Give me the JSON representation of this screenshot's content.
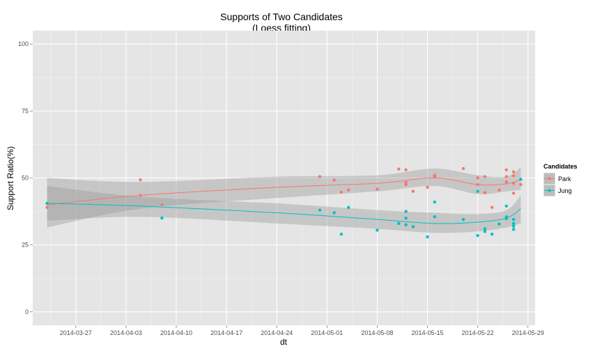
{
  "chart_data": {
    "type": "scatter",
    "title": "Supports of Two Candidates",
    "subtitle": "(Loess fitting)",
    "xlabel": "dt",
    "ylabel": "Support Ratio(%)",
    "ylim": [
      -5,
      105
    ],
    "xlim": [
      "2014-03-21",
      "2014-05-30"
    ],
    "x_ticks": [
      "2014-03-27",
      "2014-04-03",
      "2014-04-10",
      "2014-04-17",
      "2014-04-24",
      "2014-05-01",
      "2014-05-08",
      "2014-05-15",
      "2014-05-22",
      "2014-05-29"
    ],
    "y_ticks": [
      0,
      25,
      50,
      75,
      100
    ],
    "grid": true,
    "legend": {
      "title": "Candidates",
      "position": "right"
    },
    "series": [
      {
        "name": "Park",
        "color": "#F8766D",
        "points": [
          [
            "2014-03-23",
            39.0
          ],
          [
            "2014-04-05",
            49.3
          ],
          [
            "2014-04-05",
            43.5
          ],
          [
            "2014-04-08",
            40.0
          ],
          [
            "2014-04-30",
            50.5
          ],
          [
            "2014-05-02",
            49.2
          ],
          [
            "2014-05-03",
            44.7
          ],
          [
            "2014-05-04",
            45.5
          ],
          [
            "2014-05-08",
            45.8
          ],
          [
            "2014-05-11",
            53.3
          ],
          [
            "2014-05-12",
            53.0
          ],
          [
            "2014-05-12",
            48.3
          ],
          [
            "2014-05-12",
            47.5
          ],
          [
            "2014-05-13",
            45.0
          ],
          [
            "2014-05-15",
            46.5
          ],
          [
            "2014-05-16",
            51.0
          ],
          [
            "2014-05-16",
            50.5
          ],
          [
            "2014-05-20",
            53.5
          ],
          [
            "2014-05-22",
            50.0
          ],
          [
            "2014-05-22",
            47.5
          ],
          [
            "2014-05-23",
            50.5
          ],
          [
            "2014-05-23",
            44.5
          ],
          [
            "2014-05-24",
            39.0
          ],
          [
            "2014-05-25",
            45.5
          ],
          [
            "2014-05-26",
            53.0
          ],
          [
            "2014-05-26",
            50.5
          ],
          [
            "2014-05-26",
            48.5
          ],
          [
            "2014-05-27",
            52.3
          ],
          [
            "2014-05-27",
            50.8
          ],
          [
            "2014-05-27",
            48.0
          ],
          [
            "2014-05-27",
            44.3
          ],
          [
            "2014-05-28",
            49.5
          ],
          [
            "2014-05-28",
            47.5
          ]
        ],
        "fit": [
          [
            "2014-03-23",
            40.0
          ],
          [
            "2014-04-05",
            43.5
          ],
          [
            "2014-04-24",
            46.5
          ],
          [
            "2014-05-08",
            48.0
          ],
          [
            "2014-05-16",
            50.0
          ],
          [
            "2014-05-22",
            47.5
          ],
          [
            "2014-05-26",
            47.8
          ],
          [
            "2014-05-28",
            49.5
          ]
        ],
        "band_upper": [
          [
            "2014-03-23",
            50.0
          ],
          [
            "2014-04-05",
            48.5
          ],
          [
            "2014-04-24",
            50.5
          ],
          [
            "2014-05-08",
            51.0
          ],
          [
            "2014-05-16",
            53.5
          ],
          [
            "2014-05-22",
            51.0
          ],
          [
            "2014-05-26",
            50.5
          ],
          [
            "2014-05-28",
            54.0
          ]
        ],
        "band_lower": [
          [
            "2014-03-23",
            31.5
          ],
          [
            "2014-04-05",
            38.5
          ],
          [
            "2014-04-24",
            42.5
          ],
          [
            "2014-05-08",
            45.0
          ],
          [
            "2014-05-16",
            47.0
          ],
          [
            "2014-05-22",
            44.0
          ],
          [
            "2014-05-26",
            45.0
          ],
          [
            "2014-05-28",
            45.5
          ]
        ]
      },
      {
        "name": "Jung",
        "color": "#00BFC4",
        "points": [
          [
            "2014-03-23",
            40.5
          ],
          [
            "2014-04-08",
            35.0
          ],
          [
            "2014-04-30",
            38.0
          ],
          [
            "2014-05-02",
            37.0
          ],
          [
            "2014-05-03",
            29.0
          ],
          [
            "2014-05-04",
            39.0
          ],
          [
            "2014-05-08",
            30.5
          ],
          [
            "2014-05-11",
            33.0
          ],
          [
            "2014-05-12",
            37.5
          ],
          [
            "2014-05-12",
            35.0
          ],
          [
            "2014-05-12",
            32.5
          ],
          [
            "2014-05-13",
            31.8
          ],
          [
            "2014-05-15",
            28.0
          ],
          [
            "2014-05-16",
            41.0
          ],
          [
            "2014-05-16",
            35.5
          ],
          [
            "2014-05-20",
            34.5
          ],
          [
            "2014-05-22",
            45.0
          ],
          [
            "2014-05-22",
            28.5
          ],
          [
            "2014-05-23",
            31.0
          ],
          [
            "2014-05-23",
            30.0
          ],
          [
            "2014-05-24",
            29.0
          ],
          [
            "2014-05-25",
            32.8
          ],
          [
            "2014-05-26",
            39.5
          ],
          [
            "2014-05-26",
            35.5
          ],
          [
            "2014-05-26",
            34.8
          ],
          [
            "2014-05-27",
            34.5
          ],
          [
            "2014-05-27",
            33.0
          ],
          [
            "2014-05-27",
            32.0
          ],
          [
            "2014-05-27",
            30.8
          ],
          [
            "2014-05-28",
            49.5
          ]
        ],
        "fit": [
          [
            "2014-03-23",
            40.5
          ],
          [
            "2014-04-05",
            39.5
          ],
          [
            "2014-04-24",
            37.0
          ],
          [
            "2014-05-08",
            34.5
          ],
          [
            "2014-05-16",
            33.0
          ],
          [
            "2014-05-22",
            33.5
          ],
          [
            "2014-05-26",
            35.0
          ],
          [
            "2014-05-28",
            38.5
          ]
        ],
        "band_upper": [
          [
            "2014-03-23",
            47.0
          ],
          [
            "2014-04-05",
            43.0
          ],
          [
            "2014-04-24",
            40.5
          ],
          [
            "2014-05-08",
            38.0
          ],
          [
            "2014-05-16",
            37.0
          ],
          [
            "2014-05-22",
            36.5
          ],
          [
            "2014-05-26",
            38.0
          ],
          [
            "2014-05-28",
            43.5
          ]
        ],
        "band_lower": [
          [
            "2014-03-23",
            34.0
          ],
          [
            "2014-04-05",
            35.5
          ],
          [
            "2014-04-24",
            33.0
          ],
          [
            "2014-05-08",
            31.0
          ],
          [
            "2014-05-16",
            29.5
          ],
          [
            "2014-05-22",
            30.0
          ],
          [
            "2014-05-26",
            31.5
          ],
          [
            "2014-05-28",
            33.0
          ]
        ]
      }
    ]
  }
}
